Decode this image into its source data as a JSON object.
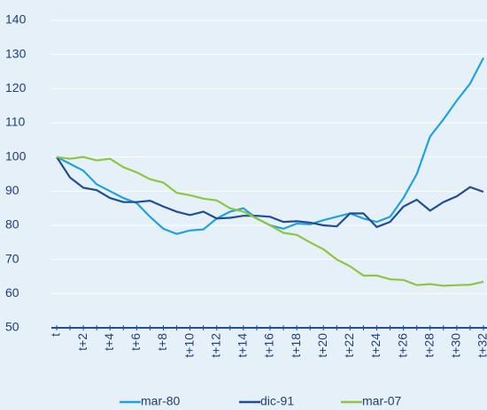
{
  "chart_data": {
    "type": "line",
    "categories": [
      "t",
      null,
      "t+2",
      null,
      "t+4",
      null,
      "t+6",
      null,
      "t+8",
      null,
      "t+10",
      null,
      "t+12",
      null,
      "t+14",
      null,
      "t+16",
      null,
      "t+18",
      null,
      "t+20",
      null,
      "t+22",
      null,
      "t+24",
      null,
      "t+26",
      null,
      "t+28",
      null,
      "t+30",
      null,
      "t+32"
    ],
    "series": [
      {
        "name": "mar-80",
        "color": "#1ea3de",
        "values": [
          100,
          98,
          96,
          92,
          90,
          88,
          86.5,
          82.5,
          79,
          77.5,
          78.5,
          78.8,
          82,
          84,
          85,
          82,
          80,
          79,
          80.5,
          80.3,
          81.5,
          82.5,
          83.5,
          82,
          81,
          82.5,
          88,
          95,
          106,
          111,
          116.5,
          121.5,
          129
        ]
      },
      {
        "name": "dic-91",
        "color": "#1f4e96",
        "values": [
          100,
          94,
          91,
          90.3,
          88,
          86.8,
          86.8,
          87.2,
          85.5,
          84,
          83,
          84,
          82,
          82.2,
          82.8,
          82.8,
          82.5,
          81,
          81.2,
          80.8,
          80,
          79.7,
          83.5,
          83.5,
          79.5,
          81,
          85.5,
          87.5,
          84.3,
          86.8,
          88.5,
          91.2,
          89.8
        ]
      },
      {
        "name": "mar-07",
        "color": "#8dc63f",
        "values": [
          100,
          99.5,
          100,
          99,
          99.5,
          97,
          95.5,
          93.5,
          92.5,
          89.5,
          88.8,
          87.8,
          87.3,
          85,
          84,
          82,
          80,
          77.8,
          77.2,
          75,
          73,
          70,
          68,
          65.3,
          65.3,
          64.2,
          64,
          62.5,
          62.8,
          62.3,
          62.5,
          62.6,
          63.5
        ]
      }
    ],
    "ylim": [
      50,
      140
    ],
    "yticks": [
      50,
      60,
      70,
      80,
      90,
      100,
      110,
      120,
      130,
      140
    ],
    "grid": true
  }
}
